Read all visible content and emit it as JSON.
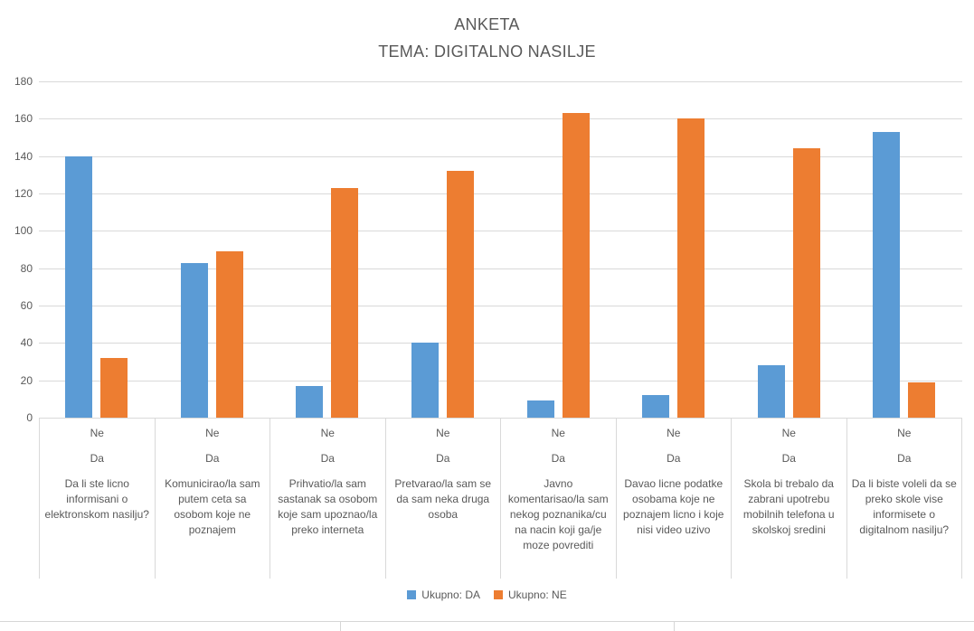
{
  "title": {
    "line1": "ANKETA",
    "line2": "TEMA: DIGITALNO NASILJE"
  },
  "colors": {
    "series_da": "#5B9BD5",
    "series_ne": "#ED7D31",
    "gridline": "#d9d9d9",
    "text": "#595959"
  },
  "legend": [
    {
      "label": "Ukupno: DA",
      "color": "#5B9BD5"
    },
    {
      "label": "Ukupno: NE",
      "color": "#ED7D31"
    }
  ],
  "chart_data": {
    "type": "bar",
    "title": "ANKETA TEMA: DIGITALNO NASILJE",
    "grid": true,
    "legend_position": "bottom",
    "ylim": [
      0,
      180
    ],
    "ytick_step": 20,
    "ytick_labels": [
      "0",
      "20",
      "40",
      "60",
      "80",
      "100",
      "120",
      "140",
      "160",
      "180"
    ],
    "categories": [
      {
        "sub_labels": [
          "Ne",
          "Da"
        ],
        "question": "Da li ste licno informisani o elektronskom nasilju?"
      },
      {
        "sub_labels": [
          "Ne",
          "Da"
        ],
        "question": "Komunicirao/la sam putem ceta sa osobom koje ne poznajem"
      },
      {
        "sub_labels": [
          "Ne",
          "Da"
        ],
        "question": "Prihvatio/la sam sastanak sa osobom koje sam upoznao/la preko interneta"
      },
      {
        "sub_labels": [
          "Ne",
          "Da"
        ],
        "question": "Pretvarao/la sam se da sam neka druga osoba"
      },
      {
        "sub_labels": [
          "Ne",
          "Da"
        ],
        "question": "Javno komentarisao/la sam nekog poznanika/cu na nacin koji ga/je moze povrediti"
      },
      {
        "sub_labels": [
          "Ne",
          "Da"
        ],
        "question": "Davao licne podatke osobama koje ne poznajem licno i koje nisi video uzivo"
      },
      {
        "sub_labels": [
          "Ne",
          "Da"
        ],
        "question": "Skola bi trebalo da zabrani upotrebu mobilnih telefona u skolskoj sredini"
      },
      {
        "sub_labels": [
          "Ne",
          "Da"
        ],
        "question": "Da li biste voleli da se preko skole vise informisete o digitalnom nasilju?"
      }
    ],
    "series": [
      {
        "name": "Ukupno: DA",
        "color": "#5B9BD5",
        "values": [
          140,
          83,
          17,
          40,
          9,
          12,
          28,
          153
        ]
      },
      {
        "name": "Ukupno: NE",
        "color": "#ED7D31",
        "values": [
          32,
          89,
          123,
          132,
          163,
          160,
          144,
          19
        ]
      }
    ]
  }
}
